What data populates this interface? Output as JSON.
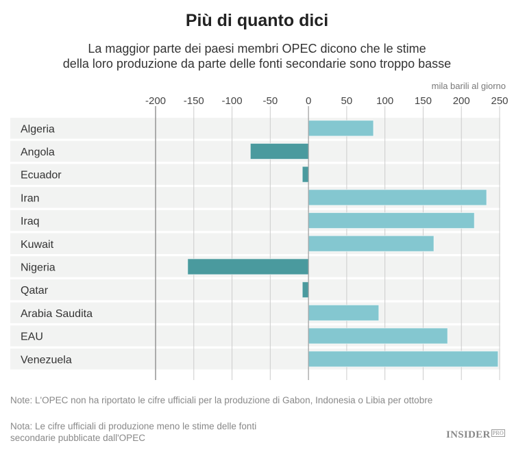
{
  "chart_data": {
    "type": "bar",
    "orientation": "horizontal",
    "title": "Più di quanto dici",
    "subtitle": [
      "La maggior parte dei paesi membri OPEC dicono che le stime",
      "della loro produzione da parte delle fonti secondarie sono troppo basse"
    ],
    "unit_label": "mila barili al giorno",
    "categories": [
      "Algeria",
      "Angola",
      "Ecuador",
      "Iran",
      "Iraq",
      "Kuwait",
      "Nigeria",
      "Qatar",
      "Arabia Saudita",
      "EAU",
      "Venezuela"
    ],
    "values": [
      85,
      -76,
      -8,
      233,
      217,
      164,
      -158,
      -8,
      92,
      182,
      248
    ],
    "xlim": [
      -200,
      250
    ],
    "ticks": [
      -200,
      -150,
      -100,
      -50,
      0,
      50,
      100,
      150,
      200,
      250
    ],
    "grid": true,
    "colors": {
      "positive": "#84c7d0",
      "negative": "#4a9a9e",
      "row_bg": "#f2f3f2"
    }
  },
  "notes": [
    "Note: L'OPEC non ha riportato le cifre ufficiali per la produzione di Gabon, Indonesia o Libia per ottobre",
    "Nota: Le cifre ufficiali di produzione meno le stime delle fonti secondarie pubblicate dall'OPEC"
  ],
  "logo": {
    "text": "INSIDER",
    "badge": "PRO"
  }
}
